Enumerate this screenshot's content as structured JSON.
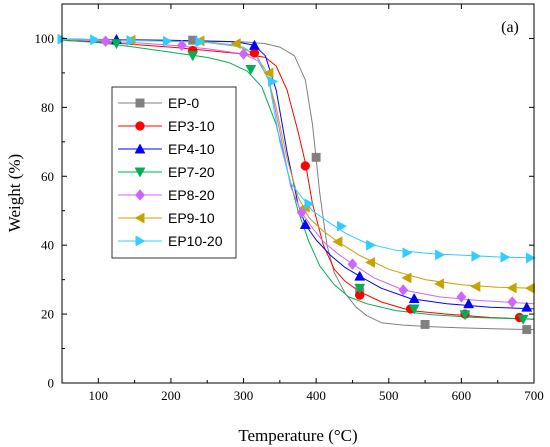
{
  "chart_data": {
    "type": "line",
    "panel_label": "(a)",
    "xlabel": "Temperature (°C)",
    "ylabel": "Weight (%)",
    "xlim": [
      50,
      700
    ],
    "ylim": [
      0,
      110
    ],
    "xticks": [
      100,
      200,
      300,
      400,
      500,
      600,
      700
    ],
    "yticks": [
      0,
      20,
      40,
      60,
      80,
      100
    ],
    "grid": false,
    "legend_position": "center-left",
    "series": [
      {
        "name": "EP-0",
        "color": "#808080",
        "marker": "square",
        "x": [
          50,
          150,
          250,
          300,
          330,
          350,
          370,
          385,
          395,
          405,
          415,
          425,
          440,
          455,
          470,
          490,
          520,
          560,
          600,
          650,
          700
        ],
        "y": [
          99.8,
          99.5,
          99.3,
          99.0,
          98.5,
          97.5,
          95.0,
          88.0,
          75.0,
          55.0,
          40.0,
          32.0,
          26.0,
          22.0,
          19.5,
          17.5,
          16.8,
          16.3,
          16.0,
          15.7,
          15.5
        ],
        "markers_x": [
          230,
          400,
          460,
          550,
          690
        ],
        "markers_y": [
          99.5,
          65.5,
          26.5,
          17.0,
          15.5
        ]
      },
      {
        "name": "EP3-10",
        "color": "#ff0000",
        "marker": "circle",
        "x": [
          50,
          100,
          200,
          250,
          300,
          330,
          345,
          360,
          375,
          385,
          395,
          410,
          425,
          440,
          460,
          490,
          530,
          580,
          640,
          700
        ],
        "y": [
          99.5,
          99.0,
          97.5,
          96.5,
          95.5,
          94.5,
          92.0,
          85.0,
          73.0,
          64.0,
          52.0,
          40.0,
          33.0,
          29.5,
          26.5,
          23.5,
          21.0,
          20.0,
          19.0,
          18.5
        ],
        "markers_x": [
          230,
          315,
          385,
          460,
          530,
          605,
          680
        ],
        "markers_y": [
          96.5,
          95.8,
          63.0,
          25.5,
          21.5,
          20.0,
          19.0
        ]
      },
      {
        "name": "EP4-10",
        "color": "#0000ff",
        "marker": "triangle-up",
        "x": [
          50,
          100,
          200,
          290,
          315,
          330,
          345,
          360,
          375,
          385,
          400,
          420,
          440,
          460,
          490,
          530,
          580,
          640,
          700
        ],
        "y": [
          99.8,
          99.7,
          99.5,
          99.0,
          98.0,
          95.0,
          85.0,
          67.0,
          52.0,
          46.0,
          41.5,
          37.0,
          33.5,
          31.0,
          27.5,
          24.5,
          23.0,
          22.0,
          21.5
        ],
        "markers_x": [
          125,
          315,
          385,
          460,
          535,
          610,
          690
        ],
        "markers_y": [
          99.7,
          98.0,
          46.0,
          31.0,
          24.5,
          23.0,
          22.0
        ]
      },
      {
        "name": "EP7-20",
        "color": "#00b050",
        "marker": "triangle-down",
        "x": [
          50,
          100,
          150,
          200,
          250,
          280,
          305,
          325,
          345,
          360,
          375,
          390,
          405,
          425,
          445,
          470,
          510,
          560,
          620,
          700
        ],
        "y": [
          99.5,
          98.8,
          97.5,
          96.0,
          94.5,
          93.0,
          90.5,
          86.0,
          75.0,
          62.0,
          50.0,
          41.0,
          34.0,
          28.5,
          25.0,
          23.0,
          21.0,
          19.8,
          19.0,
          18.5
        ],
        "markers_x": [
          125,
          230,
          310,
          460,
          535,
          605,
          685
        ],
        "markers_y": [
          98.5,
          95.0,
          91.0,
          27.5,
          21.5,
          19.8,
          18.5
        ]
      },
      {
        "name": "EP8-20",
        "color": "#cc66ff",
        "marker": "diamond",
        "x": [
          50,
          100,
          150,
          200,
          250,
          300,
          320,
          335,
          350,
          365,
          380,
          395,
          410,
          430,
          450,
          480,
          520,
          570,
          620,
          700
        ],
        "y": [
          99.8,
          99.3,
          98.8,
          98.0,
          97.0,
          95.5,
          93.5,
          88.0,
          73.0,
          57.0,
          49.5,
          45.0,
          41.0,
          37.5,
          34.5,
          30.5,
          27.0,
          25.0,
          24.0,
          23.0
        ],
        "markers_x": [
          110,
          215,
          300,
          380,
          450,
          520,
          600,
          670
        ],
        "markers_y": [
          99.2,
          98.0,
          95.5,
          49.5,
          34.5,
          27.0,
          25.0,
          23.5
        ]
      },
      {
        "name": "EP9-10",
        "color": "#c8a200",
        "marker": "triangle-left",
        "x": [
          50,
          100,
          150,
          200,
          250,
          290,
          315,
          330,
          345,
          360,
          375,
          390,
          410,
          430,
          460,
          500,
          550,
          600,
          650,
          700
        ],
        "y": [
          99.8,
          99.6,
          99.4,
          99.2,
          99.0,
          98.0,
          95.5,
          91.0,
          80.0,
          65.0,
          54.0,
          48.0,
          44.0,
          41.0,
          37.0,
          33.0,
          30.0,
          28.5,
          27.8,
          27.5
        ],
        "markers_x": [
          145,
          240,
          290,
          335,
          385,
          430,
          475,
          525,
          570,
          620,
          670,
          695
        ],
        "markers_y": [
          99.5,
          99.3,
          98.5,
          90.0,
          51.0,
          41.0,
          35.0,
          30.5,
          28.8,
          28.0,
          27.6,
          27.5
        ]
      },
      {
        "name": "EP10-20",
        "color": "#33ccff",
        "marker": "triangle-right",
        "x": [
          50,
          100,
          150,
          200,
          250,
          300,
          320,
          335,
          350,
          365,
          380,
          395,
          415,
          440,
          470,
          510,
          560,
          610,
          660,
          700
        ],
        "y": [
          99.8,
          99.6,
          99.4,
          99.2,
          98.8,
          97.5,
          94.5,
          87.5,
          70.0,
          58.0,
          54.0,
          50.0,
          47.0,
          43.5,
          40.5,
          38.5,
          37.5,
          37.0,
          36.5,
          36.3
        ],
        "markers_x": [
          50,
          95,
          145,
          195,
          240,
          340,
          390,
          435,
          475,
          525,
          570,
          620,
          660,
          695
        ],
        "markers_y": [
          99.8,
          99.6,
          99.4,
          99.2,
          99.0,
          87.5,
          52.0,
          45.5,
          40.0,
          37.8,
          37.2,
          36.8,
          36.5,
          36.3
        ]
      }
    ]
  }
}
